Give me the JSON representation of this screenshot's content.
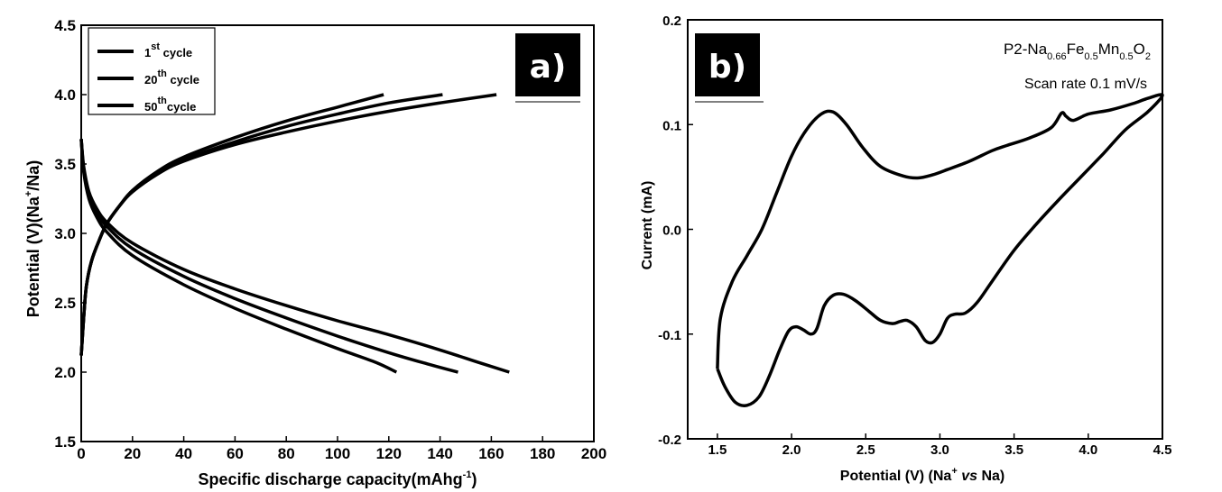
{
  "chart_data": [
    {
      "type": "line",
      "panel_label": "a)",
      "xlabel": "Specific discharge capacity(mAhg",
      "xlabel_sup": "-1",
      "xlabel_end": ")",
      "ylabel": "Potential (V)(Na",
      "ylabel_sup": "+",
      "ylabel_end": "/Na)",
      "xlim": [
        0,
        200
      ],
      "ylim": [
        1.5,
        4.5
      ],
      "xticks": [
        0,
        20,
        40,
        60,
        80,
        100,
        120,
        140,
        160,
        180,
        200
      ],
      "yticks": [
        "1.5",
        "2.0",
        "2.5",
        "3.0",
        "3.5",
        "4.0",
        "4.5"
      ],
      "legend_position": "top-left",
      "legend": [
        {
          "pre": "1",
          "sup": "st",
          "post": " cycle"
        },
        {
          "pre": "20",
          "sup": "th",
          "post": " cycle"
        },
        {
          "pre": "50",
          "sup": "th",
          "post": "cycle"
        }
      ],
      "series": [
        {
          "charge": [
            [
              0,
              2.12
            ],
            [
              1,
              2.4
            ],
            [
              2,
              2.62
            ],
            [
              4,
              2.8
            ],
            [
              7,
              2.95
            ],
            [
              10,
              3.07
            ],
            [
              15,
              3.2
            ],
            [
              20,
              3.3
            ],
            [
              30,
              3.43
            ],
            [
              40,
              3.52
            ],
            [
              60,
              3.64
            ],
            [
              80,
              3.73
            ],
            [
              100,
              3.81
            ],
            [
              120,
              3.88
            ],
            [
              140,
              3.94
            ],
            [
              162,
              4.0
            ]
          ],
          "discharge": [
            [
              0,
              3.68
            ],
            [
              1,
              3.48
            ],
            [
              3,
              3.3
            ],
            [
              6,
              3.18
            ],
            [
              10,
              3.08
            ],
            [
              20,
              2.93
            ],
            [
              40,
              2.74
            ],
            [
              60,
              2.6
            ],
            [
              80,
              2.48
            ],
            [
              100,
              2.37
            ],
            [
              120,
              2.27
            ],
            [
              140,
              2.16
            ],
            [
              155,
              2.07
            ],
            [
              167,
              2.0
            ]
          ]
        },
        {
          "charge": [
            [
              0,
              2.12
            ],
            [
              1,
              2.4
            ],
            [
              2,
              2.62
            ],
            [
              4,
              2.8
            ],
            [
              7,
              2.95
            ],
            [
              10,
              3.07
            ],
            [
              15,
              3.2
            ],
            [
              20,
              3.3
            ],
            [
              30,
              3.43
            ],
            [
              40,
              3.53
            ],
            [
              60,
              3.66
            ],
            [
              80,
              3.77
            ],
            [
              100,
              3.86
            ],
            [
              120,
              3.94
            ],
            [
              141,
              4.0
            ]
          ],
          "discharge": [
            [
              0,
              3.68
            ],
            [
              1,
              3.46
            ],
            [
              3,
              3.28
            ],
            [
              6,
              3.15
            ],
            [
              10,
              3.05
            ],
            [
              20,
              2.89
            ],
            [
              40,
              2.69
            ],
            [
              60,
              2.53
            ],
            [
              80,
              2.39
            ],
            [
              100,
              2.26
            ],
            [
              120,
              2.14
            ],
            [
              135,
              2.06
            ],
            [
              147,
              2.0
            ]
          ]
        },
        {
          "charge": [
            [
              0,
              2.12
            ],
            [
              1,
              2.4
            ],
            [
              2,
              2.62
            ],
            [
              4,
              2.8
            ],
            [
              7,
              2.95
            ],
            [
              10,
              3.07
            ],
            [
              15,
              3.2
            ],
            [
              20,
              3.31
            ],
            [
              30,
              3.45
            ],
            [
              40,
              3.55
            ],
            [
              60,
              3.69
            ],
            [
              80,
              3.81
            ],
            [
              100,
              3.91
            ],
            [
              118,
              4.0
            ]
          ],
          "discharge": [
            [
              0,
              3.68
            ],
            [
              1,
              3.44
            ],
            [
              3,
              3.25
            ],
            [
              6,
              3.12
            ],
            [
              10,
              3.01
            ],
            [
              20,
              2.84
            ],
            [
              40,
              2.63
            ],
            [
              60,
              2.46
            ],
            [
              80,
              2.31
            ],
            [
              100,
              2.17
            ],
            [
              115,
              2.07
            ],
            [
              123,
              2.0
            ]
          ]
        }
      ]
    },
    {
      "type": "line",
      "panel_label": "b)",
      "xlabel": "Potential (V) (Na",
      "xlabel_sup": "+",
      "xlabel_vs": " vs ",
      "xlabel_end": "Na)",
      "ylabel": "Current (mA)",
      "xlim": [
        1.3,
        4.5
      ],
      "ylim": [
        -0.2,
        0.2
      ],
      "xticks": [
        "1.5",
        "2.0",
        "2.5",
        "3.0",
        "3.5",
        "4.0",
        "4.5"
      ],
      "yticks": [
        "-0.2",
        "-0.1",
        "0.0",
        "0.1",
        "0.2"
      ],
      "annotation": {
        "formula_parts": [
          {
            "t": "P2-Na",
            "s": "n"
          },
          {
            "t": "0.66",
            "s": "sub"
          },
          {
            "t": "Fe",
            "s": "n"
          },
          {
            "t": "0.5",
            "s": "sub"
          },
          {
            "t": "Mn",
            "s": "n"
          },
          {
            "t": "0.5",
            "s": "sub"
          },
          {
            "t": "O",
            "s": "n"
          },
          {
            "t": "2",
            "s": "sub"
          }
        ],
        "scan_rate": "Scan rate 0.1 mV/s"
      },
      "cv": [
        [
          1.5,
          -0.133
        ],
        [
          1.55,
          -0.15
        ],
        [
          1.62,
          -0.165
        ],
        [
          1.7,
          -0.168
        ],
        [
          1.78,
          -0.16
        ],
        [
          1.85,
          -0.14
        ],
        [
          1.92,
          -0.115
        ],
        [
          1.98,
          -0.097
        ],
        [
          2.03,
          -0.093
        ],
        [
          2.08,
          -0.096
        ],
        [
          2.13,
          -0.1
        ],
        [
          2.17,
          -0.095
        ],
        [
          2.22,
          -0.073
        ],
        [
          2.28,
          -0.063
        ],
        [
          2.35,
          -0.062
        ],
        [
          2.43,
          -0.068
        ],
        [
          2.52,
          -0.078
        ],
        [
          2.6,
          -0.087
        ],
        [
          2.68,
          -0.09
        ],
        [
          2.73,
          -0.088
        ],
        [
          2.78,
          -0.087
        ],
        [
          2.84,
          -0.093
        ],
        [
          2.9,
          -0.106
        ],
        [
          2.95,
          -0.108
        ],
        [
          3.0,
          -0.1
        ],
        [
          3.05,
          -0.085
        ],
        [
          3.1,
          -0.081
        ],
        [
          3.17,
          -0.08
        ],
        [
          3.25,
          -0.07
        ],
        [
          3.35,
          -0.05
        ],
        [
          3.5,
          -0.02
        ],
        [
          3.65,
          0.005
        ],
        [
          3.8,
          0.028
        ],
        [
          3.95,
          0.05
        ],
        [
          4.1,
          0.072
        ],
        [
          4.25,
          0.095
        ],
        [
          4.4,
          0.112
        ],
        [
          4.5,
          0.128
        ],
        [
          4.4,
          0.125
        ],
        [
          4.3,
          0.12
        ],
        [
          4.15,
          0.114
        ],
        [
          4.0,
          0.11
        ],
        [
          3.9,
          0.104
        ],
        [
          3.85,
          0.108
        ],
        [
          3.82,
          0.111
        ],
        [
          3.75,
          0.097
        ],
        [
          3.6,
          0.087
        ],
        [
          3.45,
          0.08
        ],
        [
          3.35,
          0.075
        ],
        [
          3.2,
          0.065
        ],
        [
          3.05,
          0.057
        ],
        [
          2.95,
          0.052
        ],
        [
          2.85,
          0.049
        ],
        [
          2.75,
          0.051
        ],
        [
          2.6,
          0.06
        ],
        [
          2.48,
          0.078
        ],
        [
          2.37,
          0.1
        ],
        [
          2.28,
          0.112
        ],
        [
          2.2,
          0.11
        ],
        [
          2.1,
          0.095
        ],
        [
          2.0,
          0.07
        ],
        [
          1.9,
          0.035
        ],
        [
          1.8,
          0.0
        ],
        [
          1.7,
          -0.025
        ],
        [
          1.6,
          -0.05
        ],
        [
          1.52,
          -0.085
        ],
        [
          1.5,
          -0.133
        ]
      ]
    }
  ]
}
